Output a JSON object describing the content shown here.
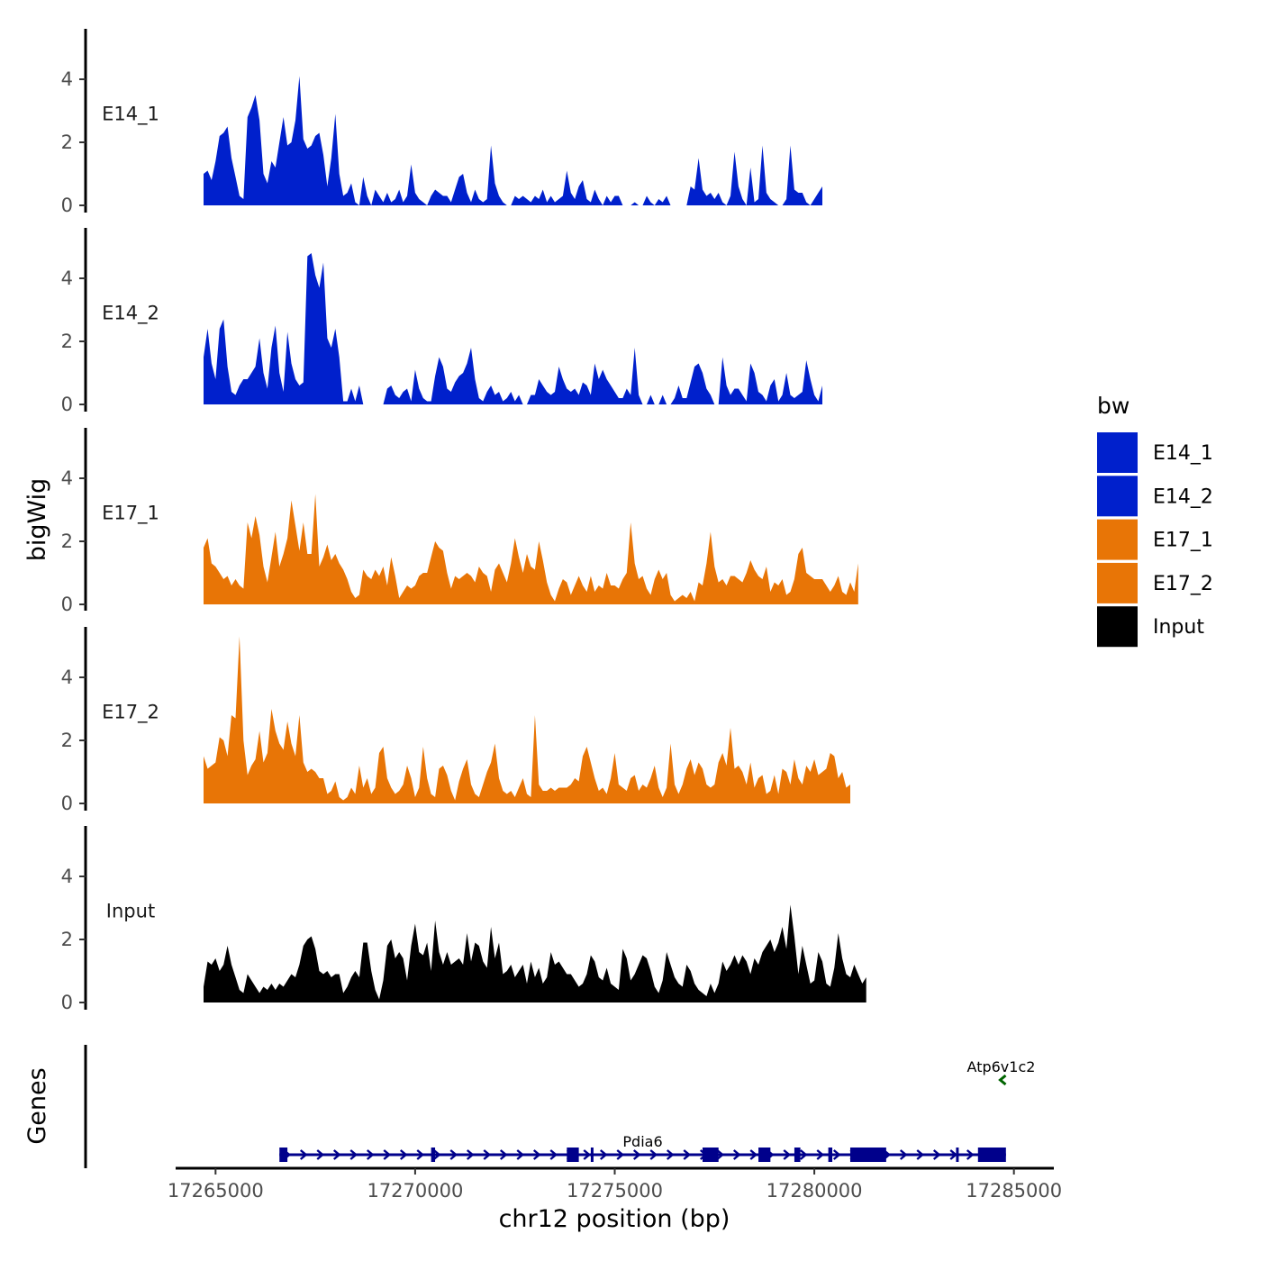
{
  "chart_data": {
    "type": "area",
    "xlabel": "chr12 position (bp)",
    "ylabel": "bigWig",
    "genes_label": "Genes",
    "xlim": [
      17264000,
      17286000
    ],
    "ylim": [
      0,
      5.5
    ],
    "x_ticks": [
      17265000,
      17270000,
      17275000,
      17280000,
      17285000
    ],
    "x_tick_labels": [
      "17265000",
      "17270000",
      "17275000",
      "17280000",
      "17285000"
    ],
    "y_ticks": [
      0,
      2,
      4
    ],
    "y_tick_labels": [
      "0",
      "2",
      "4"
    ],
    "x_start": 17264700,
    "x_step": 100,
    "legend": {
      "title": "bw",
      "entries": [
        {
          "label": "E14_1",
          "color": "#0020CC"
        },
        {
          "label": "E14_2",
          "color": "#0020CC"
        },
        {
          "label": "E17_1",
          "color": "#E87506"
        },
        {
          "label": "E17_2",
          "color": "#E87506"
        },
        {
          "label": "Input",
          "color": "#000000"
        }
      ]
    },
    "series": [
      {
        "name": "E14_1",
        "color": "#0020CC",
        "values": [
          1,
          1.1,
          0.8,
          1.4,
          2.2,
          2.3,
          2.5,
          1.5,
          0.9,
          0.3,
          0.2,
          2.8,
          3.1,
          3.5,
          2.7,
          1.0,
          0.7,
          1.4,
          1.2,
          2.0,
          2.8,
          1.9,
          2.0,
          2.7,
          4.1,
          2.1,
          1.8,
          1.9,
          2.2,
          2.3,
          1.6,
          0.6,
          1.5,
          2.9,
          1.0,
          0.3,
          0.4,
          0.7,
          0.1,
          0,
          0.9,
          0.3,
          0,
          0.5,
          0.3,
          0.1,
          0.4,
          0.1,
          0.2,
          0.5,
          0.1,
          0.3,
          1.3,
          0.4,
          0.2,
          0.1,
          0,
          0.3,
          0.5,
          0.4,
          0.3,
          0.3,
          0.1,
          0.5,
          0.9,
          1.0,
          0.4,
          0.1,
          0.5,
          0.2,
          0.1,
          0.2,
          1.9,
          0.7,
          0.3,
          0.1,
          0,
          0,
          0.3,
          0.2,
          0.3,
          0.2,
          0.1,
          0.3,
          0.2,
          0.5,
          0.1,
          0.3,
          0.1,
          0.2,
          0.3,
          1.1,
          0.4,
          0.2,
          0.6,
          0.8,
          0.2,
          0.1,
          0.5,
          0.2,
          0,
          0.3,
          0.1,
          0.3,
          0.3,
          0,
          0,
          0,
          0.1,
          0,
          0,
          0.3,
          0.1,
          0,
          0.2,
          0.1,
          0.3,
          0,
          0,
          0,
          0,
          0,
          0.6,
          0.5,
          1.5,
          0.5,
          0.3,
          0.4,
          0.2,
          0.4,
          0.1,
          0,
          0.3,
          1.7,
          0.6,
          0.2,
          0,
          1.2,
          0.1,
          0.2,
          1.9,
          0.4,
          0.2,
          0.1,
          0,
          0,
          0.2,
          1.9,
          0.5,
          0.4,
          0.4,
          0.1,
          0,
          0.2,
          0.4,
          0.6
        ]
      },
      {
        "name": "E14_2",
        "color": "#0020CC",
        "values": [
          1.5,
          2.4,
          1.3,
          0.8,
          2.4,
          2.7,
          1.2,
          0.4,
          0.3,
          0.6,
          0.8,
          0.8,
          1.0,
          1.2,
          2.1,
          1.0,
          0.5,
          1.8,
          2.5,
          1.0,
          0.4,
          2.3,
          1.3,
          0.8,
          0.6,
          0.7,
          4.7,
          4.8,
          4.1,
          3.7,
          4.5,
          2.1,
          1.8,
          2.4,
          1.5,
          0.1,
          0.1,
          0.5,
          0.1,
          0.6,
          0,
          0,
          0,
          0,
          0,
          0,
          0.5,
          0.6,
          0.3,
          0.2,
          0.4,
          0.5,
          0.1,
          1.1,
          0.5,
          0.2,
          0.1,
          0.1,
          0.9,
          1.5,
          1.2,
          0.5,
          0.4,
          0.7,
          0.9,
          1.0,
          1.3,
          1.8,
          0.8,
          0.2,
          0.1,
          0.4,
          0.6,
          0.3,
          0.4,
          0.1,
          0.2,
          0.4,
          0.1,
          0.3,
          0,
          0,
          0.3,
          0.3,
          0.8,
          0.6,
          0.4,
          0.3,
          0.4,
          1.2,
          0.8,
          0.5,
          0.4,
          0.5,
          0.3,
          0.7,
          0.6,
          0.3,
          1.3,
          0.8,
          1.1,
          0.8,
          0.6,
          0.4,
          0.2,
          0.2,
          0.5,
          0.3,
          1.8,
          0.3,
          0,
          0,
          0.3,
          0,
          0,
          0.3,
          0,
          0,
          0.2,
          0.6,
          0.2,
          0.2,
          0.7,
          1.2,
          1.3,
          1.0,
          0.5,
          0.3,
          0,
          0,
          1.5,
          0.6,
          0.3,
          0.5,
          0.5,
          0.3,
          0.1,
          1.3,
          1.0,
          0.4,
          0.3,
          0.1,
          0.6,
          0.8,
          0.1,
          0.3,
          1.0,
          0.3,
          0.2,
          0.3,
          0.4,
          1.4,
          0.8,
          0.3,
          0.1,
          0.6
        ]
      },
      {
        "name": "E17_1",
        "color": "#E87506",
        "values": [
          1.8,
          2.1,
          1.3,
          1.2,
          1.0,
          0.8,
          0.9,
          0.6,
          0.8,
          0.6,
          0.5,
          2.6,
          2.1,
          2.8,
          2.2,
          1.2,
          0.7,
          1.5,
          2.3,
          1.2,
          1.6,
          2.1,
          3.3,
          2.5,
          1.7,
          2.6,
          1.6,
          1.6,
          3.5,
          1.2,
          1.5,
          1.9,
          1.4,
          1.6,
          1.3,
          1.1,
          0.8,
          0.4,
          0.2,
          0.3,
          1.1,
          0.9,
          0.8,
          1.1,
          0.9,
          1.2,
          0.6,
          1.5,
          0.9,
          0.2,
          0.4,
          0.6,
          0.5,
          0.6,
          0.9,
          1.0,
          1.0,
          1.5,
          2.0,
          1.8,
          1.7,
          1.0,
          0.5,
          0.9,
          0.8,
          0.9,
          1.0,
          0.9,
          0.7,
          1.2,
          1.0,
          0.9,
          0.4,
          1.1,
          1.3,
          1.0,
          0.7,
          1.3,
          2.1,
          1.5,
          1.0,
          1.6,
          1.2,
          1.1,
          2.0,
          1.4,
          0.7,
          0.3,
          0.1,
          0.5,
          0.8,
          0.7,
          0.3,
          0.6,
          0.9,
          0.6,
          0.4,
          0.9,
          0.4,
          0.6,
          0.5,
          1.0,
          0.6,
          0.6,
          0.5,
          0.8,
          1.0,
          2.6,
          1.3,
          0.8,
          0.9,
          0.5,
          0.3,
          0.8,
          1.1,
          0.8,
          1.0,
          0.3,
          0.1,
          0.2,
          0.3,
          0.2,
          0.4,
          0.1,
          0.7,
          0.6,
          1.3,
          2.3,
          1.2,
          0.7,
          0.8,
          0.6,
          0.9,
          0.9,
          0.8,
          0.7,
          1.0,
          1.4,
          1.1,
          0.9,
          0.8,
          1.2,
          0.4,
          0.7,
          0.6,
          0.8,
          0.3,
          0.4,
          0.8,
          1.6,
          1.8,
          1.0,
          0.9,
          0.8,
          0.8,
          0.8,
          0.6,
          0.4,
          0.6,
          0.9,
          0.4,
          0.3,
          0.7,
          0.4,
          1.3
        ]
      },
      {
        "name": "E17_2",
        "color": "#E87506",
        "values": [
          1.5,
          1.1,
          1.2,
          1.3,
          2.1,
          2.0,
          1.5,
          2.8,
          2.7,
          5.3,
          2.0,
          0.9,
          1.2,
          1.4,
          2.3,
          1.3,
          1.6,
          3.0,
          2.3,
          1.9,
          1.7,
          2.6,
          1.9,
          1.5,
          2.8,
          1.3,
          1.0,
          1.1,
          1.0,
          0.8,
          0.8,
          0.3,
          0.4,
          0.7,
          0.2,
          0.1,
          0.2,
          0.5,
          0.3,
          1.2,
          0.5,
          0.8,
          0.3,
          0.5,
          1.6,
          1.8,
          0.8,
          0.5,
          0.3,
          0.4,
          0.6,
          1.2,
          0.8,
          0.2,
          0.5,
          1.8,
          0.8,
          0.3,
          0.2,
          1.1,
          1.2,
          0.9,
          0.4,
          0.1,
          0.7,
          1.1,
          1.4,
          0.6,
          0.3,
          0.2,
          0.6,
          1.0,
          1.3,
          1.9,
          0.8,
          0.4,
          0.3,
          0.4,
          0.2,
          0.5,
          0.8,
          0.3,
          0.2,
          2.8,
          0.6,
          0.4,
          0.4,
          0.5,
          0.4,
          0.5,
          0.5,
          0.5,
          0.6,
          0.8,
          0.7,
          1.5,
          1.8,
          1.3,
          0.8,
          0.4,
          0.5,
          0.3,
          0.8,
          1.6,
          0.6,
          0.5,
          0.4,
          0.8,
          0.9,
          0.4,
          0.6,
          0.5,
          0.8,
          1.2,
          0.5,
          0.2,
          0.5,
          1.9,
          0.6,
          0.3,
          0.6,
          1.1,
          1.4,
          0.9,
          1.3,
          1.1,
          0.6,
          0.5,
          0.6,
          1.3,
          1.6,
          1.2,
          2.4,
          1.1,
          1.2,
          1.0,
          0.6,
          1.3,
          0.5,
          0.8,
          0.9,
          0.3,
          0.4,
          0.9,
          0.3,
          1.1,
          1.0,
          0.6,
          1.4,
          0.8,
          0.6,
          1.2,
          1.0,
          1.4,
          0.9,
          1.0,
          1.1,
          1.6,
          1.5,
          0.8,
          1.0,
          0.5,
          0.6
        ]
      },
      {
        "name": "Input",
        "color": "#000000",
        "values": [
          0.5,
          1.3,
          1.2,
          1.4,
          1.0,
          1.2,
          1.8,
          1.2,
          0.8,
          0.4,
          0.3,
          0.9,
          0.7,
          0.5,
          0.3,
          0.5,
          0.4,
          0.6,
          0.4,
          0.6,
          0.5,
          0.7,
          0.9,
          0.8,
          1.2,
          1.8,
          2.0,
          2.1,
          1.7,
          1.0,
          0.9,
          1.0,
          0.8,
          0.9,
          0.9,
          0.3,
          0.5,
          0.8,
          1.0,
          0.8,
          1.9,
          1.9,
          1.0,
          0.4,
          0.1,
          0.7,
          1.8,
          2.0,
          1.4,
          1.6,
          1.4,
          0.7,
          1.8,
          2.5,
          1.6,
          1.5,
          1.9,
          1.0,
          2.6,
          1.6,
          1.2,
          1.6,
          1.2,
          1.3,
          1.4,
          1.2,
          2.2,
          1.3,
          1.9,
          1.8,
          1.3,
          1.1,
          2.4,
          1.4,
          1.9,
          0.9,
          1.0,
          1.2,
          0.8,
          1.0,
          1.2,
          0.6,
          1.3,
          0.8,
          1.1,
          0.6,
          0.8,
          1.6,
          1.2,
          1.3,
          1.1,
          0.9,
          0.9,
          0.7,
          0.5,
          0.6,
          0.9,
          1.5,
          1.3,
          0.8,
          0.7,
          1.1,
          0.6,
          0.5,
          0.4,
          1.7,
          1.4,
          0.7,
          0.9,
          1.2,
          1.5,
          1.4,
          1.0,
          0.5,
          0.3,
          0.7,
          1.6,
          1.2,
          0.8,
          0.6,
          0.5,
          1.2,
          1.0,
          0.6,
          0.4,
          0.3,
          0.2,
          0.6,
          0.3,
          0.6,
          1.3,
          1.0,
          1.2,
          1.5,
          1.2,
          1.5,
          1.3,
          0.9,
          1.4,
          1.2,
          1.6,
          1.8,
          2.0,
          1.6,
          1.9,
          2.4,
          1.7,
          3.1,
          2.1,
          0.9,
          1.8,
          1.2,
          0.6,
          0.7,
          1.6,
          1.3,
          0.6,
          0.5,
          1.1,
          2.2,
          1.4,
          0.9,
          0.8,
          1.2,
          0.9,
          0.6,
          0.8
        ]
      }
    ],
    "genes": [
      {
        "name": "Pdia6",
        "start": 17266600,
        "end": 17284800,
        "strand": "+",
        "color": "#00008B",
        "exons": [
          [
            17266600,
            17266800
          ],
          [
            17270400,
            17270500
          ],
          [
            17273800,
            17274100
          ],
          [
            17274400,
            17274450
          ],
          [
            17277200,
            17277600
          ],
          [
            17278600,
            17278900
          ],
          [
            17279500,
            17279650
          ],
          [
            17280350,
            17280450
          ],
          [
            17280900,
            17281800
          ],
          [
            17283550,
            17283600
          ],
          [
            17284100,
            17284800
          ]
        ]
      },
      {
        "name": "Atp6v1c2",
        "start": 17284650,
        "end": 17284800,
        "strand": "-",
        "color": "#006400",
        "exons": []
      }
    ]
  }
}
